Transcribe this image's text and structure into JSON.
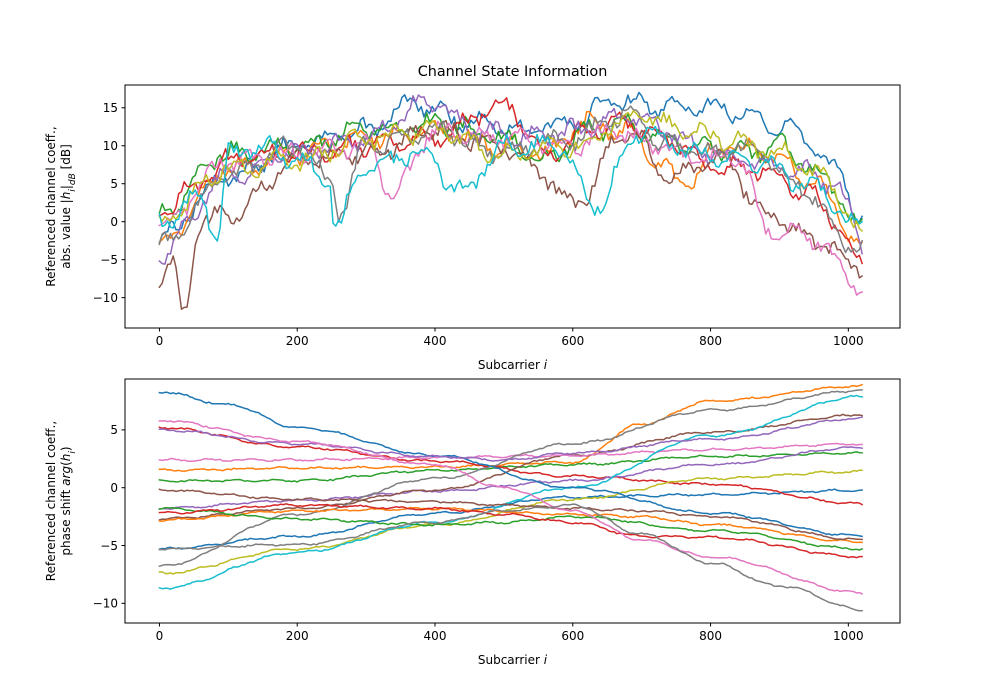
{
  "chart_data": [
    {
      "type": "line",
      "title": "Channel State Information",
      "ylabel_lines": [
        "Referenced channel coeff.,",
        "abs. value |h_i|_dB [dB]"
      ],
      "xlabel": "Subcarrier i",
      "xlim": [
        -50,
        1075
      ],
      "ylim": [
        -14,
        18
      ],
      "xticks": [
        0,
        200,
        400,
        600,
        800,
        1000
      ],
      "yticks": [
        -10,
        -5,
        0,
        5,
        10,
        15
      ],
      "grid": false,
      "colors": [
        "#1f77b4",
        "#ff7f0e",
        "#2ca02c",
        "#d62728",
        "#9467bd",
        "#8c564b",
        "#e377c2",
        "#7f7f7f",
        "#bcbd22",
        "#17becf"
      ],
      "series": [
        {
          "x": [
            0,
            100,
            200,
            300,
            370,
            450,
            520,
            600,
            660,
            720,
            790,
            850,
            920,
            980,
            1023
          ],
          "values": [
            -2,
            6,
            10,
            12,
            15.5,
            13,
            12,
            13,
            16,
            15,
            15.5,
            14,
            12,
            7,
            0
          ]
        },
        {
          "x": [
            0,
            100,
            200,
            300,
            400,
            500,
            560,
            620,
            680,
            720,
            760,
            820,
            880,
            940,
            1023
          ],
          "values": [
            -3,
            7,
            9,
            11,
            12,
            10,
            9,
            13,
            12,
            8,
            5,
            10,
            9,
            6,
            -3
          ]
        },
        {
          "x": [
            0,
            100,
            200,
            300,
            400,
            500,
            560,
            620,
            680,
            720,
            780,
            840,
            900,
            960,
            1023
          ],
          "values": [
            1,
            9,
            10,
            12,
            13,
            11,
            8,
            12,
            13,
            11,
            10,
            9,
            10,
            6,
            -1
          ]
        },
        {
          "x": [
            0,
            40,
            100,
            200,
            300,
            400,
            500,
            560,
            620,
            680,
            740,
            800,
            870,
            940,
            1023
          ],
          "values": [
            1,
            4,
            8,
            9,
            10,
            11,
            15.5,
            9,
            12,
            13,
            11,
            7,
            7,
            4,
            -5
          ]
        },
        {
          "x": [
            0,
            100,
            200,
            300,
            390,
            460,
            540,
            600,
            680,
            740,
            800,
            860,
            920,
            980,
            1023
          ],
          "values": [
            -4,
            6,
            9,
            11,
            16,
            12,
            11,
            12,
            14,
            12,
            9,
            8,
            7,
            5,
            -3
          ]
        },
        {
          "x": [
            0,
            20,
            33,
            60,
            100,
            200,
            300,
            400,
            500,
            560,
            600,
            680,
            740,
            820,
            880,
            940,
            1023
          ],
          "values": [
            -7,
            -6,
            -12.5,
            0,
            1,
            8,
            9,
            12,
            10,
            6,
            2,
            12,
            6,
            8,
            1,
            -2,
            -6
          ]
        },
        {
          "x": [
            0,
            100,
            200,
            300,
            340,
            400,
            500,
            600,
            660,
            720,
            780,
            840,
            880,
            940,
            1023
          ],
          "values": [
            -1,
            8,
            9,
            10,
            4,
            12,
            11,
            10,
            12,
            10,
            8,
            9,
            -1,
            -2,
            -8.5
          ]
        },
        {
          "x": [
            0,
            100,
            200,
            250,
            260,
            300,
            400,
            500,
            600,
            680,
            740,
            800,
            860,
            920,
            1023
          ],
          "values": [
            -3,
            6,
            10,
            5,
            1,
            10,
            12,
            9,
            11,
            14,
            10,
            9,
            10,
            5,
            -4
          ]
        },
        {
          "x": [
            0,
            100,
            200,
            300,
            400,
            500,
            600,
            700,
            760,
            820,
            900,
            960,
            1023
          ],
          "values": [
            0,
            7,
            8,
            11,
            12,
            9,
            10,
            14,
            12,
            11,
            9,
            6,
            -2
          ]
        },
        {
          "x": [
            0,
            60,
            85,
            100,
            150,
            200,
            250,
            253,
            300,
            380,
            440,
            500,
            580,
            630,
            700,
            780,
            860,
            940,
            1023
          ],
          "values": [
            0,
            3,
            -2,
            9,
            10,
            8,
            5,
            -1,
            7,
            9,
            4,
            10,
            10,
            2,
            12,
            9,
            8,
            5,
            -1
          ]
        }
      ]
    },
    {
      "type": "line",
      "title": "",
      "ylabel_lines": [
        "Referenced channel coeff.,",
        "phase shift arg(h_i)"
      ],
      "xlabel": "Subcarrier i",
      "xlim": [
        -50,
        1075
      ],
      "ylim": [
        -11.7,
        9.4
      ],
      "xticks": [
        0,
        200,
        400,
        600,
        800,
        1000
      ],
      "yticks": [
        -10,
        -5,
        0,
        5
      ],
      "grid": false,
      "colors": [
        "#1f77b4",
        "#ff7f0e",
        "#2ca02c",
        "#d62728",
        "#9467bd",
        "#8c564b",
        "#e377c2",
        "#7f7f7f",
        "#bcbd22",
        "#17becf"
      ],
      "series": [
        {
          "x": [
            0,
            200,
            400,
            600,
            800,
            1023
          ],
          "values": [
            -5.3,
            -4.2,
            -2.2,
            -0.8,
            -0.6,
            -0.2
          ]
        },
        {
          "x": [
            0,
            200,
            400,
            600,
            700,
            800,
            1023
          ],
          "values": [
            1.5,
            1.7,
            1.8,
            2.2,
            5.5,
            7.5,
            8.8
          ]
        },
        {
          "x": [
            0,
            200,
            400,
            600,
            800,
            1023
          ],
          "values": [
            0.6,
            0.6,
            1.5,
            2.0,
            2.7,
            3.0
          ]
        },
        {
          "x": [
            0,
            200,
            400,
            600,
            800,
            1023
          ],
          "values": [
            5.2,
            3.5,
            2.3,
            1.0,
            0.3,
            -1.4
          ]
        },
        {
          "x": [
            0,
            200,
            400,
            600,
            800,
            1023
          ],
          "values": [
            -1.8,
            -1.1,
            -0.3,
            0.6,
            2.0,
            3.5
          ]
        },
        {
          "x": [
            0,
            200,
            400,
            600,
            800,
            1023
          ],
          "values": [
            -2.7,
            -1.8,
            -0.2,
            2.8,
            4.8,
            6.3
          ]
        },
        {
          "x": [
            0,
            200,
            400,
            600,
            800,
            1023
          ],
          "values": [
            2.4,
            2.4,
            2.6,
            2.8,
            3.3,
            3.8
          ]
        },
        {
          "x": [
            0,
            200,
            400,
            600,
            800,
            1023
          ],
          "values": [
            -6.8,
            -2.3,
            0.8,
            3.8,
            6.7,
            8.4
          ]
        },
        {
          "x": [
            0,
            200,
            400,
            600,
            800,
            1023
          ],
          "values": [
            -7.4,
            -5.3,
            -3.2,
            -1.0,
            0.8,
            1.4
          ]
        },
        {
          "x": [
            0,
            200,
            400,
            600,
            800,
            1023
          ],
          "values": [
            -8.7,
            -5.6,
            -3.0,
            0.0,
            4.5,
            7.9
          ]
        },
        {
          "x": [
            0,
            100,
            200,
            400,
            600,
            800,
            1023
          ],
          "values": [
            8.3,
            7.2,
            5.2,
            2.8,
            0.0,
            -2.2,
            -4.2
          ]
        },
        {
          "x": [
            0,
            200,
            400,
            600,
            700,
            800,
            1023
          ],
          "values": [
            -2.8,
            -2.0,
            -1.8,
            -2.3,
            -2.5,
            -3.2,
            -4.7
          ]
        },
        {
          "x": [
            0,
            200,
            400,
            500,
            600,
            800,
            1023
          ],
          "values": [
            -1.8,
            -2.7,
            -3.2,
            -3.0,
            -2.5,
            -3.7,
            -5.3
          ]
        },
        {
          "x": [
            0,
            200,
            400,
            500,
            600,
            700,
            800,
            1023
          ],
          "values": [
            -2.2,
            -1.5,
            -1.8,
            -2.3,
            -3.0,
            -4.2,
            -4.3,
            -6.0
          ]
        },
        {
          "x": [
            0,
            200,
            400,
            500,
            600,
            800,
            1023
          ],
          "values": [
            5.0,
            3.8,
            2.7,
            2.4,
            3.0,
            4.2,
            6.0
          ]
        },
        {
          "x": [
            0,
            200,
            400,
            500,
            600,
            700,
            800,
            1023
          ],
          "values": [
            -0.2,
            -1.0,
            -1.2,
            -1.5,
            -1.8,
            -2.0,
            -2.5,
            -4.5
          ]
        },
        {
          "x": [
            0,
            200,
            400,
            500,
            600,
            700,
            800,
            1023
          ],
          "values": [
            5.8,
            4.0,
            2.0,
            0.0,
            -2.0,
            -4.5,
            -6.0,
            -9.1
          ]
        },
        {
          "x": [
            0,
            200,
            400,
            500,
            600,
            700,
            800,
            900,
            1023
          ],
          "values": [
            -5.3,
            -4.9,
            -3.0,
            -2.0,
            -1.5,
            -4.0,
            -6.5,
            -8.5,
            -10.6
          ]
        }
      ]
    }
  ]
}
